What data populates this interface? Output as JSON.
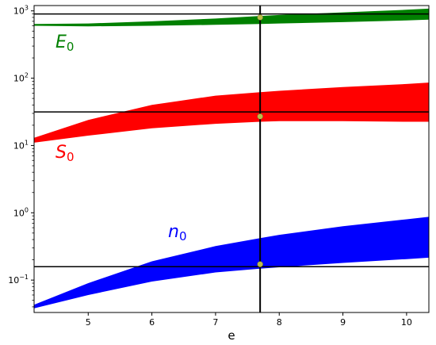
{
  "chart_data": {
    "type": "area",
    "title": "",
    "xlabel": "e",
    "ylabel": "",
    "xlim": [
      4.15,
      10.35
    ],
    "ylim": [
      0.033,
      1200
    ],
    "yscale": "log",
    "grid": false,
    "x_ticks": [
      5,
      6,
      7,
      8,
      9,
      10
    ],
    "y_ticks": [
      {
        "value": 1000,
        "base": "10",
        "exp": "3"
      },
      {
        "value": 100,
        "base": "10",
        "exp": "2"
      },
      {
        "value": 10,
        "base": "10",
        "exp": "1"
      },
      {
        "value": 1,
        "base": "10",
        "exp": "0"
      },
      {
        "value": 0.1,
        "base": "10",
        "exp": "−1"
      }
    ],
    "x": [
      4.15,
      5,
      6,
      7,
      7.7,
      8,
      9,
      10,
      10.35
    ],
    "series": [
      {
        "name": "E",
        "sub": "0",
        "color": "#008000",
        "lower": [
          600,
          590,
          600,
          620,
          640,
          650,
          680,
          720,
          740
        ],
        "upper": [
          640,
          650,
          700,
          770,
          840,
          870,
          950,
          1040,
          1080
        ]
      },
      {
        "name": "S",
        "sub": "0",
        "color": "#ff0000",
        "lower": [
          11,
          14,
          18,
          21,
          22.5,
          23,
          23,
          22.5,
          22.5
        ],
        "upper": [
          13,
          24,
          40,
          55,
          62,
          65,
          74,
          82,
          86
        ]
      },
      {
        "name": "n",
        "sub": "0",
        "color": "#0000ff",
        "lower": [
          0.038,
          0.06,
          0.095,
          0.13,
          0.148,
          0.155,
          0.18,
          0.205,
          0.215
        ],
        "upper": [
          0.043,
          0.09,
          0.19,
          0.32,
          0.42,
          0.47,
          0.63,
          0.8,
          0.87
        ]
      }
    ],
    "reference": {
      "x": 7.7,
      "h_lines": [
        900,
        31.5,
        0.158
      ],
      "points": [
        {
          "x": 7.7,
          "y": 800
        },
        {
          "x": 7.7,
          "y": 27
        },
        {
          "x": 7.7,
          "y": 0.172
        }
      ],
      "point_color": "#bdbd4a"
    }
  }
}
